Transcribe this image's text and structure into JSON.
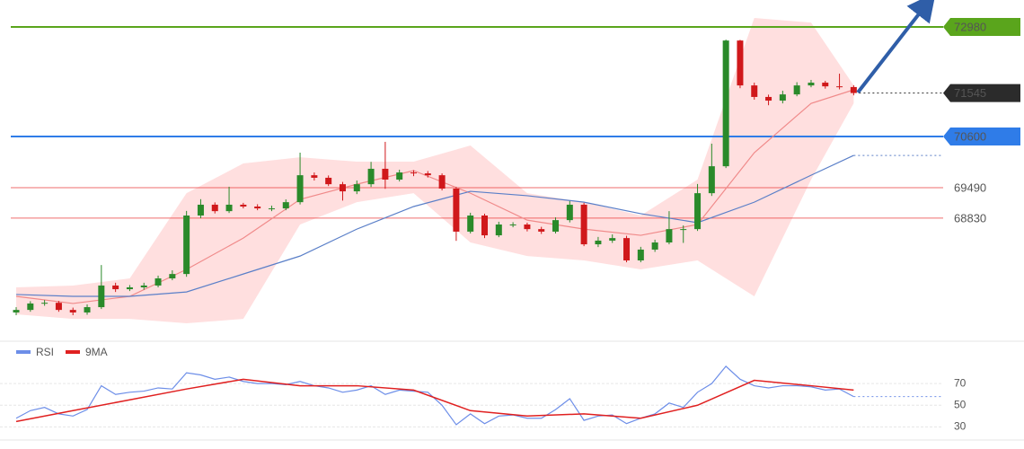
{
  "chart_data": [
    {
      "type": "candlestick",
      "open": [
        66780,
        66835,
        66975,
        66990,
        66835,
        66780,
        66895,
        67365,
        67285,
        67325,
        67365,
        67520,
        67615,
        68885,
        69120,
        68980,
        69120,
        69080,
        69040,
        69040,
        69175,
        69760,
        69705,
        69565,
        69410,
        69565,
        69900,
        69665,
        69820,
        69800,
        69760,
        69470,
        68535,
        68885,
        68455,
        68690,
        68690,
        68590,
        68535,
        68785,
        69120,
        68260,
        68340,
        68395,
        67910,
        68145,
        68300,
        68590,
        68590,
        69370,
        69955,
        72685,
        71710,
        71460,
        71380,
        71515,
        71710,
        71770,
        71690,
        71675
      ],
      "high": [
        66895,
        67025,
        67050,
        67030,
        66885,
        66955,
        67810,
        67425,
        67375,
        67425,
        67580,
        67695,
        68985,
        69240,
        69170,
        69510,
        69160,
        69130,
        69100,
        69235,
        70250,
        69820,
        69755,
        69615,
        69645,
        70050,
        70485,
        69880,
        69870,
        69850,
        69800,
        69510,
        68945,
        68925,
        68750,
        68740,
        68730,
        68640,
        68845,
        69200,
        69160,
        68420,
        68475,
        68445,
        68205,
        68360,
        68980,
        68670,
        69570,
        70445,
        72705,
        72700,
        71770,
        71510,
        71595,
        71780,
        71830,
        71810,
        71965,
        71715
      ],
      "low": [
        66720,
        66795,
        66925,
        66795,
        66720,
        66730,
        66855,
        67225,
        67245,
        67275,
        67325,
        67480,
        67555,
        68825,
        68930,
        68940,
        69040,
        69000,
        68980,
        69000,
        69125,
        69645,
        69525,
        69210,
        69350,
        69505,
        69465,
        69625,
        69740,
        69710,
        69430,
        68335,
        68495,
        68395,
        68415,
        68630,
        68540,
        68485,
        68495,
        68735,
        68220,
        68200,
        68290,
        67870,
        67870,
        68095,
        68260,
        68290,
        68550,
        69310,
        69915,
        71650,
        71400,
        71280,
        71320,
        71475,
        71670,
        71640,
        71625,
        71495
      ],
      "close": [
        66835,
        66975,
        66990,
        66835,
        66780,
        66895,
        67365,
        67285,
        67325,
        67365,
        67520,
        67615,
        68885,
        69120,
        68980,
        69120,
        69080,
        69040,
        69040,
        69175,
        69760,
        69705,
        69565,
        69410,
        69565,
        69900,
        69665,
        69820,
        69800,
        69760,
        69470,
        68535,
        68885,
        68455,
        68690,
        68690,
        68590,
        68535,
        68785,
        69120,
        68260,
        68340,
        68395,
        67910,
        68145,
        68300,
        68590,
        68590,
        69370,
        69955,
        72685,
        71710,
        71460,
        71380,
        71515,
        71710,
        71770,
        71690,
        71675,
        71545
      ],
      "up_color": "#2a8a2a",
      "down_color": "#d0181b",
      "xlim": [
        -1.14,
        71
      ],
      "ylim": [
        66350,
        73565
      ],
      "band": {
        "color": "#ffd4d4",
        "x": [
          0,
          4,
          8,
          12,
          16,
          20,
          24,
          28,
          32,
          36,
          40,
          44,
          48,
          52,
          56,
          59
        ],
        "upper": [
          67325,
          67365,
          67520,
          69370,
          70015,
          70150,
          70055,
          70055,
          70405,
          69370,
          69175,
          68885,
          69665,
          73175,
          73075,
          71710
        ],
        "lower": [
          66740,
          66640,
          66640,
          66545,
          66640,
          68690,
          69175,
          69370,
          68300,
          68005,
          67910,
          67715,
          67910,
          67130,
          69665,
          71320
        ]
      },
      "lines": [
        {
          "color": "#f08a8a",
          "x": [
            0,
            4,
            8,
            12,
            16,
            20,
            24,
            28,
            32,
            36,
            40,
            44,
            48,
            52,
            56,
            59
          ],
          "values": [
            67130,
            66975,
            67130,
            67715,
            68395,
            69235,
            69565,
            69860,
            69370,
            68785,
            68590,
            68455,
            68690,
            70250,
            71320,
            71615
          ]
        },
        {
          "color": "#5a7fc8",
          "x": [
            0,
            4,
            8,
            12,
            16,
            20,
            24,
            28,
            32,
            36,
            40,
            44,
            48,
            52,
            56,
            59
          ],
          "values": [
            67170,
            67130,
            67130,
            67225,
            67615,
            68005,
            68590,
            69080,
            69410,
            69315,
            69175,
            68925,
            68730,
            69175,
            69760,
            70190
          ]
        }
      ],
      "levels": [
        {
          "value": 72980,
          "color": "#5aa51c",
          "line_style": "solid",
          "label_style": "box"
        },
        {
          "value": 71545,
          "color": "#2b2b2b",
          "line_style": "dotted",
          "label_style": "box"
        },
        {
          "value": 70600,
          "color": "#2f7ce8",
          "line_style": "solid",
          "label_style": "box"
        },
        {
          "value": 69490,
          "color": "#e83030",
          "line_style": "thin",
          "label_style": "text"
        },
        {
          "value": 68830,
          "color": "#e83030",
          "line_style": "thin",
          "label_style": "text"
        }
      ]
    },
    {
      "type": "line",
      "xlim": [
        -1.14,
        71
      ],
      "ylim": [
        22,
        100
      ],
      "yticks": [
        30,
        50,
        70
      ],
      "grid": true,
      "series": [
        {
          "name": "RSI",
          "color": "#6d8ee8",
          "values": [
            38,
            45,
            48,
            42,
            40,
            46,
            68,
            60,
            62,
            63,
            66,
            65,
            80,
            78,
            74,
            76,
            72,
            70,
            70,
            69,
            72,
            68,
            66,
            62,
            64,
            68,
            60,
            64,
            63,
            62,
            50,
            32,
            42,
            33,
            40,
            41,
            38,
            38,
            46,
            56,
            36,
            40,
            41,
            33,
            38,
            42,
            52,
            48,
            62,
            70,
            86,
            74,
            68,
            66,
            68,
            68,
            67,
            64,
            65,
            58
          ]
        },
        {
          "name": "9MA",
          "color": "#e02020",
          "x": [
            0,
            4,
            8,
            12,
            16,
            20,
            24,
            28,
            32,
            36,
            40,
            44,
            48,
            52,
            56,
            59
          ],
          "values": [
            35,
            45,
            55,
            65,
            74,
            68,
            68,
            64,
            45,
            40,
            42,
            38,
            50,
            73,
            68,
            64
          ]
        }
      ]
    }
  ]
}
